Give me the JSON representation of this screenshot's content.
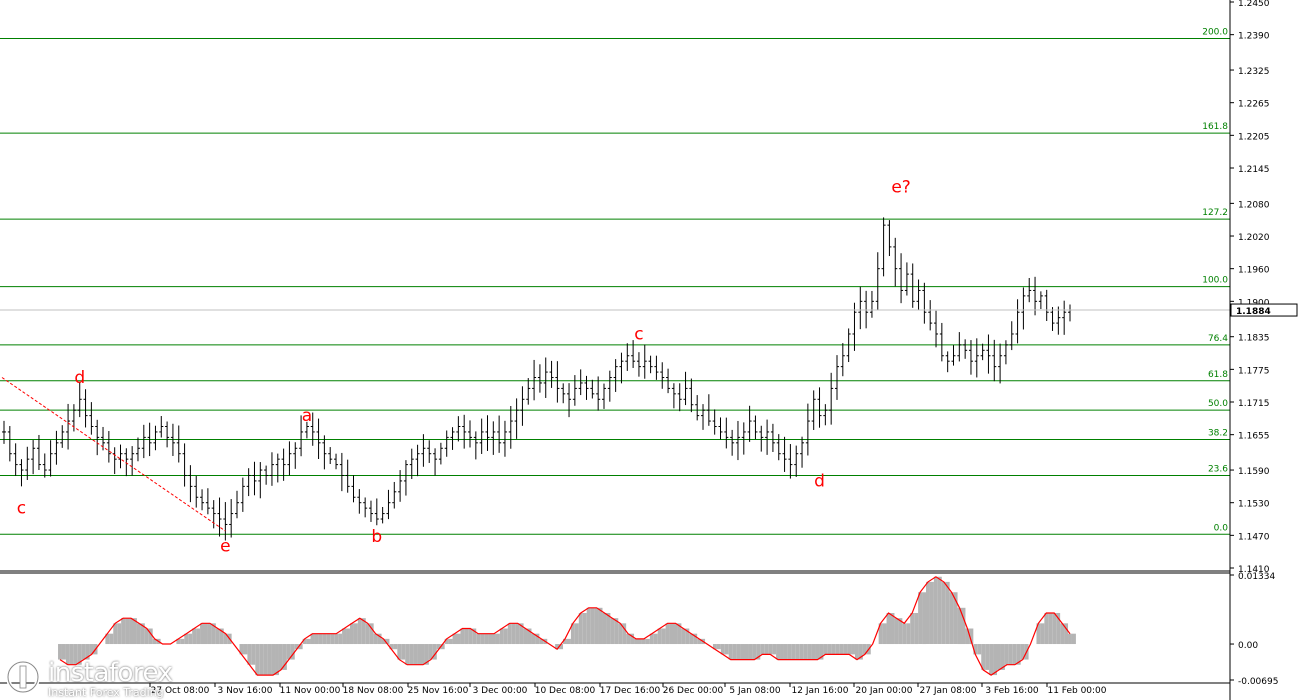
{
  "chart_data": [
    {
      "type": "candlestick",
      "y_ticks": [
        "1.2450",
        "1.2390",
        "1.2325",
        "1.2265",
        "1.2205",
        "1.2145",
        "1.2080",
        "1.2020",
        "1.1960",
        "1.1900",
        "1.1835",
        "1.1775",
        "1.1715",
        "1.1655",
        "1.1590",
        "1.1530",
        "1.1470",
        "1.1410"
      ],
      "ylim": [
        1.141,
        1.245
      ],
      "current_price": "1.1884",
      "x_labels": [
        "27 Oct 08:00",
        "3 Nov 16:00",
        "11 Nov 00:00",
        "18 Nov 08:00",
        "25 Nov 16:00",
        "3 Dec 00:00",
        "10 Dec 08:00",
        "17 Dec 16:00",
        "26 Dec 00:00",
        "5 Jan 08:00",
        "12 Jan 16:00",
        "20 Jan 00:00",
        "27 Jan 08:00",
        "3 Feb 16:00",
        "11 Feb 00:00"
      ],
      "fib_levels": [
        {
          "label": "0.0",
          "price": 1.1472
        },
        {
          "label": "23.6",
          "price": 1.158
        },
        {
          "label": "38.2",
          "price": 1.1646
        },
        {
          "label": "50.0",
          "price": 1.17
        },
        {
          "label": "61.8",
          "price": 1.1754
        },
        {
          "label": "76.4",
          "price": 1.182
        },
        {
          "label": "100.0",
          "price": 1.1927
        },
        {
          "label": "127.2",
          "price": 1.2051
        },
        {
          "label": "161.8",
          "price": 1.2209
        },
        {
          "label": "200.0",
          "price": 1.2383
        }
      ],
      "wave_labels": [
        {
          "text": "c",
          "date_index": 3,
          "price": 1.151
        },
        {
          "text": "d",
          "date_index": 13,
          "price": 1.175
        },
        {
          "text": "e",
          "date_index": 38,
          "price": 1.144
        },
        {
          "text": "a",
          "date_index": 52,
          "price": 1.168
        },
        {
          "text": "b",
          "date_index": 64,
          "price": 1.1458
        },
        {
          "text": "c",
          "date_index": 109,
          "price": 1.183
        },
        {
          "text": "d",
          "date_index": 140,
          "price": 1.156
        },
        {
          "text": "e?",
          "date_index": 154,
          "price": 1.21
        }
      ],
      "close_series": [
        1.166,
        1.162,
        1.16,
        1.159,
        1.161,
        1.163,
        1.16,
        1.159,
        1.162,
        1.164,
        1.166,
        1.168,
        1.17,
        1.172,
        1.169,
        1.167,
        1.165,
        1.164,
        1.162,
        1.161,
        1.162,
        1.161,
        1.162,
        1.163,
        1.165,
        1.164,
        1.166,
        1.167,
        1.165,
        1.164,
        1.162,
        1.158,
        1.156,
        1.154,
        1.153,
        1.152,
        1.151,
        1.15,
        1.149,
        1.151,
        1.153,
        1.156,
        1.158,
        1.157,
        1.159,
        1.158,
        1.16,
        1.161,
        1.16,
        1.162,
        1.163,
        1.166,
        1.167,
        1.166,
        1.164,
        1.162,
        1.161,
        1.16,
        1.158,
        1.156,
        1.154,
        1.153,
        1.152,
        1.151,
        1.15,
        1.151,
        1.153,
        1.155,
        1.157,
        1.16,
        1.161,
        1.162,
        1.163,
        1.162,
        1.161,
        1.163,
        1.165,
        1.166,
        1.167,
        1.166,
        1.165,
        1.164,
        1.166,
        1.165,
        1.166,
        1.164,
        1.166,
        1.168,
        1.17,
        1.172,
        1.174,
        1.176,
        1.175,
        1.177,
        1.176,
        1.174,
        1.173,
        1.172,
        1.174,
        1.175,
        1.174,
        1.173,
        1.172,
        1.174,
        1.176,
        1.178,
        1.179,
        1.18,
        1.179,
        1.178,
        1.179,
        1.178,
        1.177,
        1.176,
        1.174,
        1.173,
        1.172,
        1.174,
        1.171,
        1.169,
        1.17,
        1.168,
        1.167,
        1.166,
        1.165,
        1.164,
        1.165,
        1.166,
        1.168,
        1.166,
        1.165,
        1.166,
        1.164,
        1.162,
        1.161,
        1.16,
        1.162,
        1.164,
        1.168,
        1.172,
        1.169,
        1.17,
        1.174,
        1.178,
        1.18,
        1.184,
        1.188,
        1.19,
        1.188,
        1.19,
        1.196,
        1.204,
        1.2,
        1.196,
        1.192,
        1.195,
        1.19,
        1.192,
        1.188,
        1.186,
        1.184,
        1.18,
        1.179,
        1.18,
        1.182,
        1.181,
        1.179,
        1.18,
        1.181,
        1.18,
        1.178,
        1.18,
        1.182,
        1.184,
        1.188,
        1.191,
        1.192,
        1.19,
        1.191,
        1.188,
        1.186,
        1.187,
        1.188,
        1.1884
      ],
      "oscillator": {
        "y_ticks": [
          "0.01334",
          "0.00",
          "-0.00695"
        ],
        "ylim": [
          -0.00695,
          0.01334
        ],
        "values": [
          -0.003,
          -0.004,
          -0.004,
          -0.003,
          -0.002,
          0.0,
          0.002,
          0.004,
          0.005,
          0.005,
          0.004,
          0.003,
          0.001,
          0.0,
          0.0,
          0.001,
          0.002,
          0.003,
          0.004,
          0.004,
          0.003,
          0.002,
          0.0,
          -0.002,
          -0.004,
          -0.006,
          -0.006,
          -0.006,
          -0.005,
          -0.003,
          -0.001,
          0.001,
          0.002,
          0.002,
          0.002,
          0.002,
          0.003,
          0.004,
          0.005,
          0.004,
          0.002,
          0.001,
          -0.001,
          -0.003,
          -0.004,
          -0.004,
          -0.004,
          -0.003,
          -0.001,
          0.001,
          0.002,
          0.003,
          0.003,
          0.002,
          0.002,
          0.002,
          0.003,
          0.004,
          0.004,
          0.003,
          0.002,
          0.001,
          0.0,
          -0.001,
          0.001,
          0.004,
          0.006,
          0.007,
          0.007,
          0.006,
          0.005,
          0.004,
          0.002,
          0.001,
          0.001,
          0.002,
          0.003,
          0.004,
          0.004,
          0.003,
          0.002,
          0.001,
          0.0,
          -0.001,
          -0.002,
          -0.003,
          -0.003,
          -0.003,
          -0.003,
          -0.002,
          -0.002,
          -0.003,
          -0.003,
          -0.003,
          -0.003,
          -0.003,
          -0.003,
          -0.002,
          -0.002,
          -0.002,
          -0.002,
          -0.003,
          -0.002,
          0.0,
          0.004,
          0.006,
          0.005,
          0.004,
          0.006,
          0.01,
          0.012,
          0.013,
          0.012,
          0.01,
          0.007,
          0.003,
          -0.002,
          -0.005,
          -0.006,
          -0.005,
          -0.004,
          -0.004,
          -0.003,
          0.0,
          0.004,
          0.006,
          0.006,
          0.004,
          0.002
        ]
      }
    }
  ],
  "watermark": {
    "name": "instaforex",
    "tagline": "Instant Forex Trading"
  },
  "colors": {
    "fib_line": "#008000",
    "candle": "#000000",
    "wave_label": "#ff0000",
    "trend_line": "#ff0000",
    "osc_fill": "#b4b4b4",
    "osc_line": "#ff0000",
    "axis_text": "#000000",
    "price_box": "#ffffff"
  }
}
